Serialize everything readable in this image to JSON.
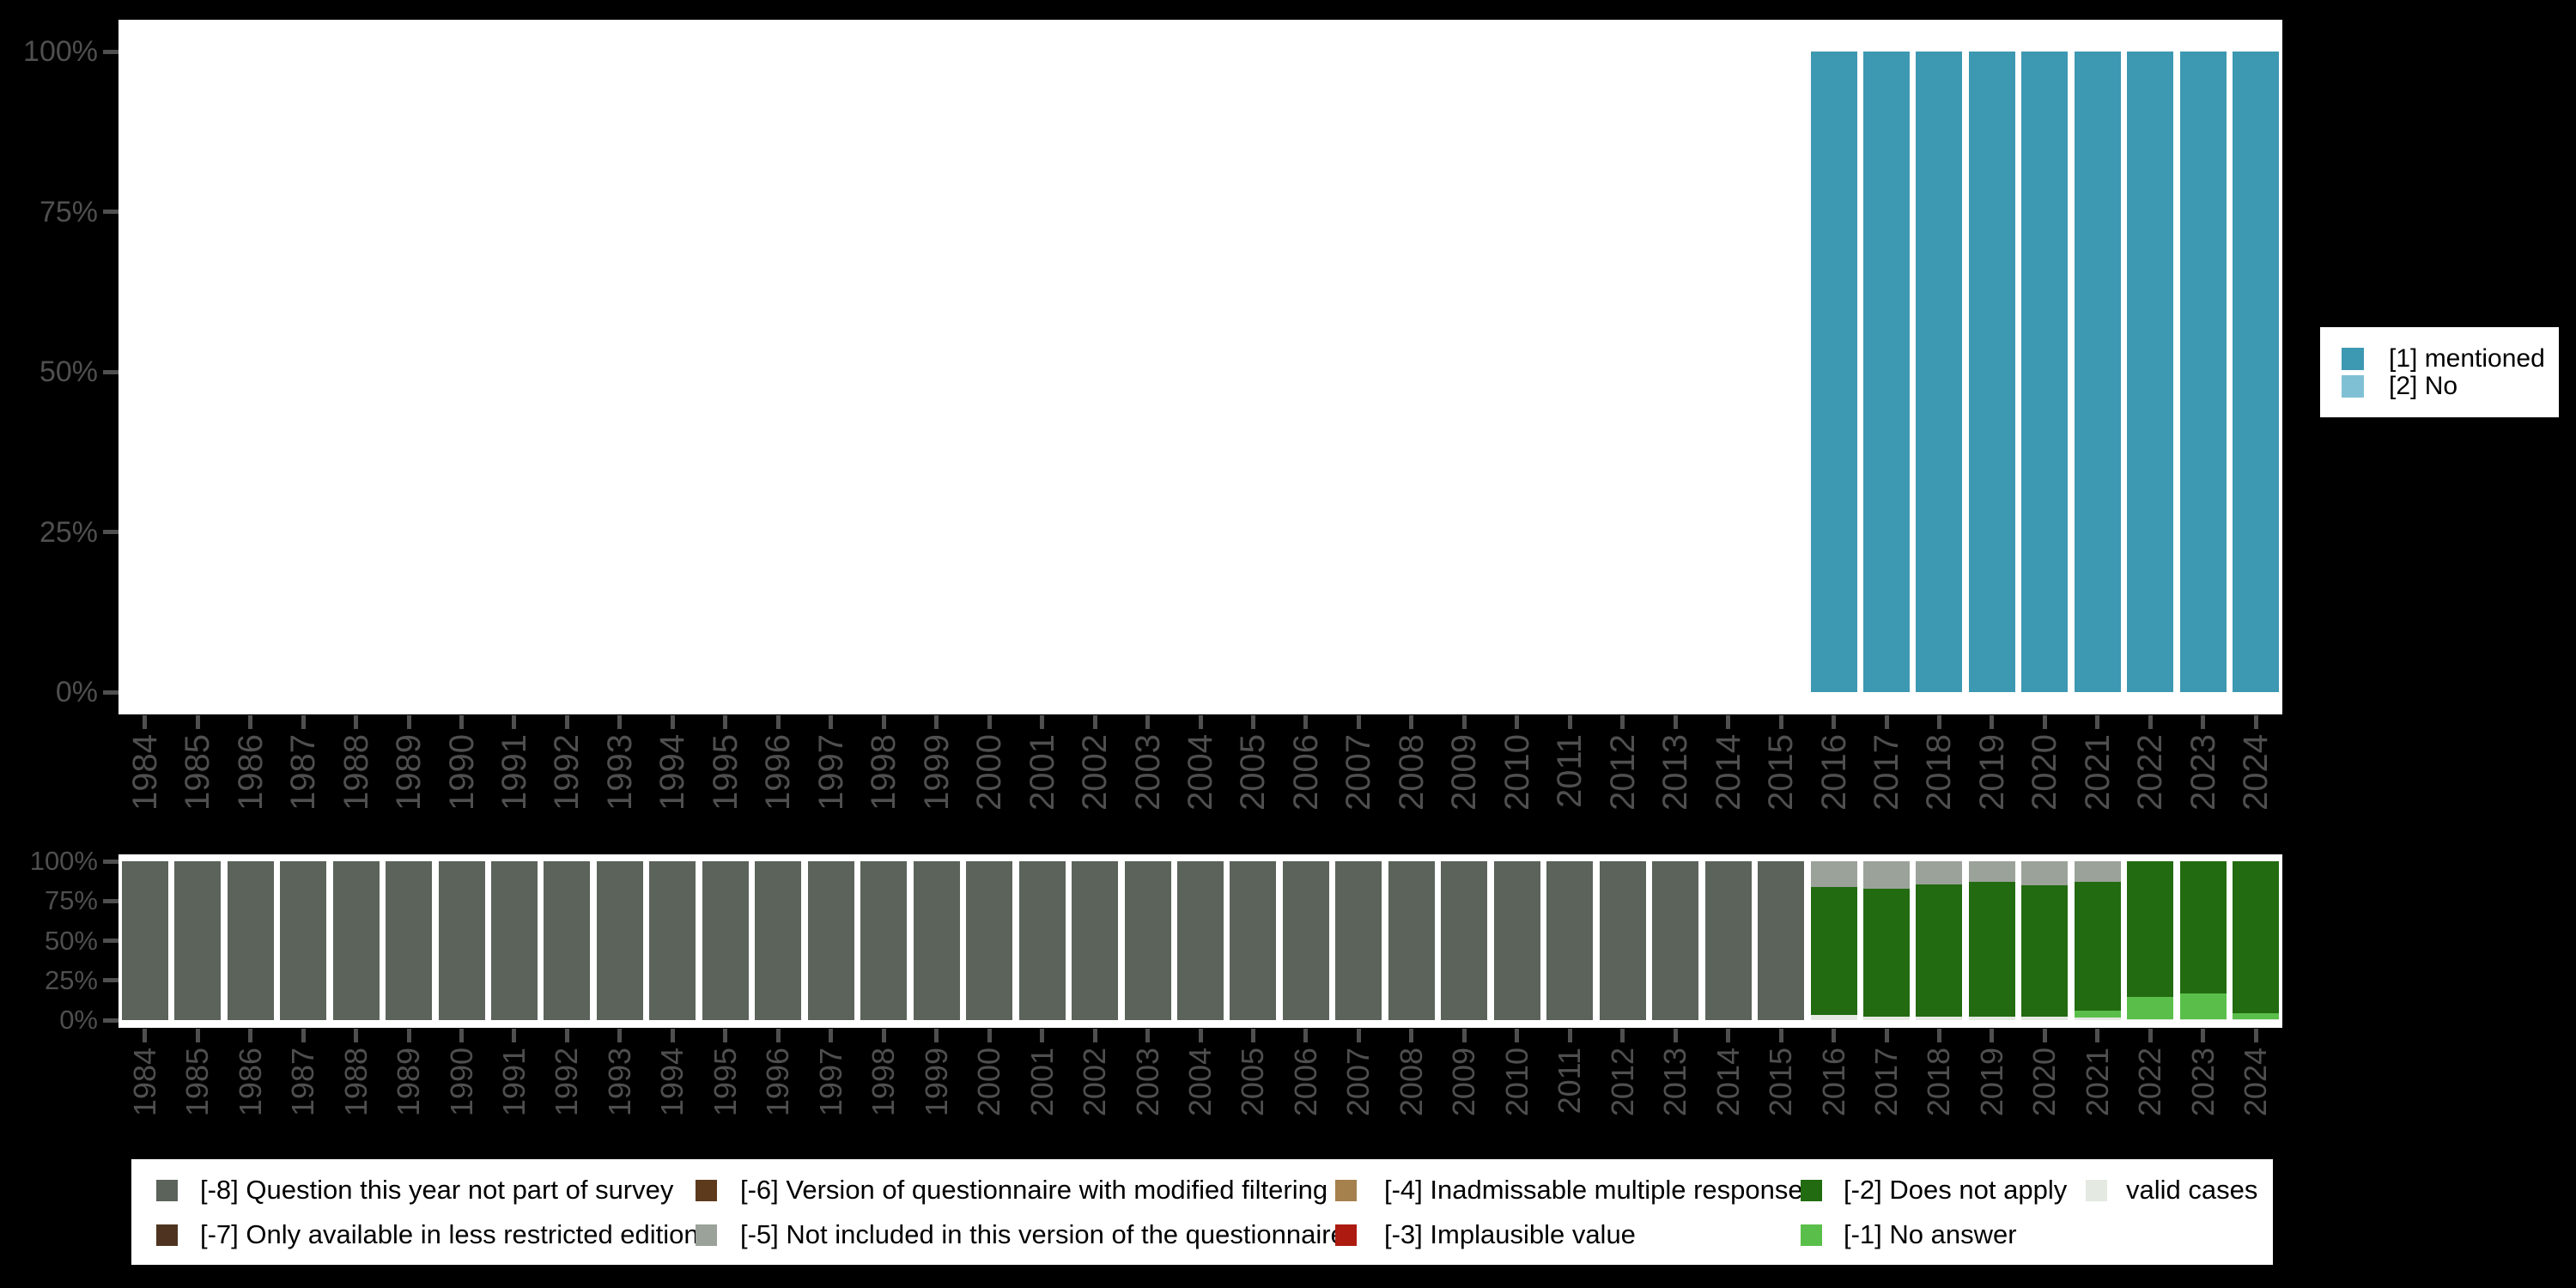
{
  "page": {
    "background": "#000000"
  },
  "axis": {
    "text_color": "#4f4f4f",
    "tick_color": "#4f4f4f",
    "ytick_labels": [
      "0%",
      "25%",
      "50%",
      "75%",
      "100%"
    ],
    "ytick_values": [
      0,
      25,
      50,
      75,
      100
    ]
  },
  "top_legend": {
    "entries": [
      {
        "label": "[1] mentioned",
        "color": "#3d98b2"
      },
      {
        "label": "[2] No",
        "color": "#80c0d4"
      }
    ]
  },
  "bottom_legend": {
    "entries": [
      {
        "label": "[-8] Question this year not part of survey",
        "color": "#5b635b"
      },
      {
        "label": "[-7] Only available in less restricted edition",
        "color": "#4e3420"
      },
      {
        "label": "[-6] Version of questionnaire with modified filtering",
        "color": "#5e3a1d"
      },
      {
        "label": "[-5] Not included in this version of the questionnaire",
        "color": "#9ba29a"
      },
      {
        "label": "[-4] Inadmissable multiple response",
        "color": "#a5814e"
      },
      {
        "label": "[-3] Implausible value",
        "color": "#ad1a10"
      },
      {
        "label": "[-2] Does not apply",
        "color": "#226b10"
      },
      {
        "label": "[-1] No answer",
        "color": "#5abf4a"
      },
      {
        "label": "valid cases",
        "color": "#e4e9e1"
      }
    ]
  },
  "chart_data": [
    {
      "type": "bar",
      "stacked": true,
      "title": "",
      "xlabel": "",
      "ylabel": "",
      "ylim": [
        0,
        100
      ],
      "grid": false,
      "legend_position": "right",
      "categories": [
        1984,
        1985,
        1986,
        1987,
        1988,
        1989,
        1990,
        1991,
        1992,
        1993,
        1994,
        1995,
        1996,
        1997,
        1998,
        1999,
        2000,
        2001,
        2002,
        2003,
        2004,
        2005,
        2006,
        2007,
        2008,
        2009,
        2010,
        2011,
        2012,
        2013,
        2014,
        2015,
        2016,
        2017,
        2018,
        2019,
        2020,
        2021,
        2022,
        2023,
        2024
      ],
      "series": [
        {
          "name": "[1] mentioned",
          "color": "#3d98b2",
          "values": [
            null,
            null,
            null,
            null,
            null,
            null,
            null,
            null,
            null,
            null,
            null,
            null,
            null,
            null,
            null,
            null,
            null,
            null,
            null,
            null,
            null,
            null,
            null,
            null,
            null,
            null,
            null,
            null,
            null,
            null,
            null,
            null,
            100,
            100,
            100,
            100,
            100,
            100,
            100,
            100,
            100
          ]
        },
        {
          "name": "[2] No",
          "color": "#80c0d4",
          "values": [
            null,
            null,
            null,
            null,
            null,
            null,
            null,
            null,
            null,
            null,
            null,
            null,
            null,
            null,
            null,
            null,
            null,
            null,
            null,
            null,
            null,
            null,
            null,
            null,
            null,
            null,
            null,
            null,
            null,
            null,
            null,
            null,
            null,
            null,
            null,
            null,
            null,
            null,
            null,
            null,
            null
          ]
        }
      ]
    },
    {
      "type": "bar",
      "stacked": true,
      "stack_order": "top-down",
      "title": "",
      "xlabel": "",
      "ylabel": "",
      "ylim": [
        0,
        100
      ],
      "grid": false,
      "legend_position": "bottom",
      "categories": [
        1984,
        1985,
        1986,
        1987,
        1988,
        1989,
        1990,
        1991,
        1992,
        1993,
        1994,
        1995,
        1996,
        1997,
        1998,
        1999,
        2000,
        2001,
        2002,
        2003,
        2004,
        2005,
        2006,
        2007,
        2008,
        2009,
        2010,
        2011,
        2012,
        2013,
        2014,
        2015,
        2016,
        2017,
        2018,
        2019,
        2020,
        2021,
        2022,
        2023,
        2024
      ],
      "series": [
        {
          "name": "[-8] Question this year not part of survey",
          "color": "#5b635b",
          "values": [
            100,
            100,
            100,
            100,
            100,
            100,
            100,
            100,
            100,
            100,
            100,
            100,
            100,
            100,
            100,
            100,
            100,
            100,
            100,
            100,
            100,
            100,
            100,
            100,
            100,
            100,
            100,
            100,
            100,
            100,
            100,
            100,
            null,
            null,
            null,
            null,
            null,
            null,
            null,
            null,
            null
          ]
        },
        {
          "name": "[-5] Not included in this version of the questionnaire",
          "color": "#9ba29a",
          "values": [
            null,
            null,
            null,
            null,
            null,
            null,
            null,
            null,
            null,
            null,
            null,
            null,
            null,
            null,
            null,
            null,
            null,
            null,
            null,
            null,
            null,
            null,
            null,
            null,
            null,
            null,
            null,
            null,
            null,
            null,
            null,
            null,
            16,
            17.5,
            14.5,
            13,
            15,
            13,
            null,
            null,
            null
          ]
        },
        {
          "name": "[-2] Does not apply",
          "color": "#226b10",
          "values": [
            null,
            null,
            null,
            null,
            null,
            null,
            null,
            null,
            null,
            null,
            null,
            null,
            null,
            null,
            null,
            null,
            null,
            null,
            null,
            null,
            null,
            null,
            null,
            null,
            null,
            null,
            null,
            null,
            null,
            null,
            null,
            null,
            81,
            80.5,
            83.5,
            85,
            83,
            81,
            85.5,
            83,
            95.5
          ]
        },
        {
          "name": "[-1] No answer",
          "color": "#5abf4a",
          "values": [
            null,
            null,
            null,
            null,
            null,
            null,
            null,
            null,
            null,
            null,
            null,
            null,
            null,
            null,
            null,
            null,
            null,
            null,
            null,
            null,
            null,
            null,
            null,
            null,
            null,
            null,
            null,
            null,
            null,
            null,
            null,
            null,
            null,
            null,
            null,
            null,
            null,
            4.5,
            14,
            16.5,
            4
          ]
        },
        {
          "name": "valid cases",
          "color": "#e4e9e1",
          "values": [
            null,
            null,
            null,
            null,
            null,
            null,
            null,
            null,
            null,
            null,
            null,
            null,
            null,
            null,
            null,
            null,
            null,
            null,
            null,
            null,
            null,
            null,
            null,
            null,
            null,
            null,
            null,
            null,
            null,
            null,
            null,
            null,
            3,
            2,
            2,
            2,
            2,
            1.5,
            0.5,
            0.5,
            0.5
          ]
        }
      ]
    }
  ]
}
